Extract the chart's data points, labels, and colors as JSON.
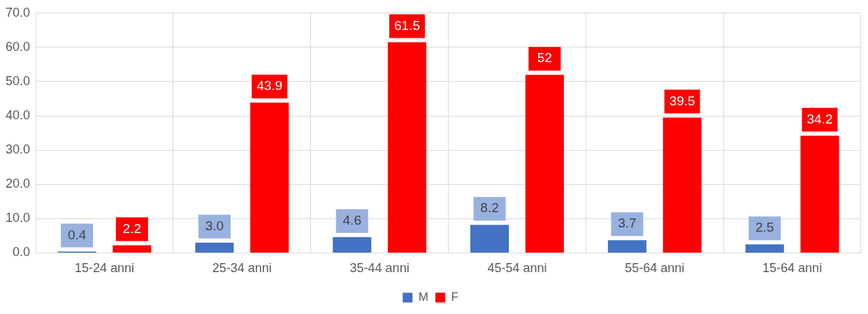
{
  "chart_data": {
    "type": "bar",
    "categories": [
      "15-24 anni",
      "25-34 anni",
      "35-44 anni",
      "45-54 anni",
      "55-64 anni",
      "15-64 anni"
    ],
    "series": [
      {
        "name": "M",
        "color": "#4472c4",
        "values": [
          0.4,
          3.0,
          4.6,
          8.2,
          3.7,
          2.5
        ],
        "value_labels": [
          "0.4",
          "3.0",
          "4.6",
          "8.2",
          "3.7",
          "2.5"
        ]
      },
      {
        "name": "F",
        "color": "#ff0000",
        "values": [
          2.2,
          43.9,
          61.5,
          52,
          39.5,
          34.2
        ],
        "value_labels": [
          "2.2",
          "43.9",
          "61.5",
          "52",
          "39.5",
          "34.2"
        ]
      }
    ],
    "ylim": [
      0,
      70
    ],
    "yticks": [
      {
        "value": 0,
        "label": "0.0"
      },
      {
        "value": 10,
        "label": "10.0"
      },
      {
        "value": 20,
        "label": "20.0"
      },
      {
        "value": 30,
        "label": "30.0"
      },
      {
        "value": 40,
        "label": "40.0"
      },
      {
        "value": 50,
        "label": "50.0"
      },
      {
        "value": 60,
        "label": "60.0"
      },
      {
        "value": 70,
        "label": "70.0"
      }
    ],
    "grid": true,
    "legend": "bottom"
  }
}
